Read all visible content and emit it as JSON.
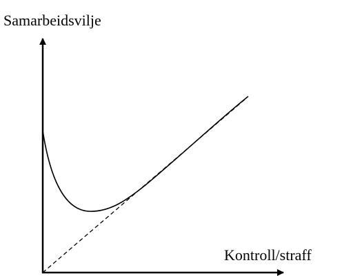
{
  "y_axis_label": "Samarbeidsvilje",
  "x_axis_label": "Kontroll/straff"
}
